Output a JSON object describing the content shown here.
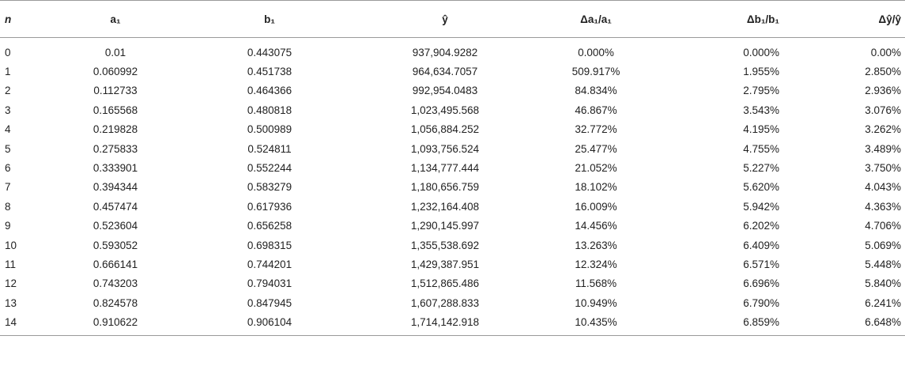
{
  "table": {
    "headers": [
      "n",
      "a₁",
      "b₁",
      "ŷ",
      "Δa₁/a₁",
      "Δb₁/b₁",
      "Δŷ/ŷ"
    ],
    "rows": [
      [
        "0",
        "0.01",
        "0.443075",
        "937,904.9282",
        "0.000%",
        "0.000%",
        "0.00%"
      ],
      [
        "1",
        "0.060992",
        "0.451738",
        "964,634.7057",
        "509.917%",
        "1.955%",
        "2.850%"
      ],
      [
        "2",
        "0.112733",
        "0.464366",
        "992,954.0483",
        "84.834%",
        "2.795%",
        "2.936%"
      ],
      [
        "3",
        "0.165568",
        "0.480818",
        "1,023,495.568",
        "46.867%",
        "3.543%",
        "3.076%"
      ],
      [
        "4",
        "0.219828",
        "0.500989",
        "1,056,884.252",
        "32.772%",
        "4.195%",
        "3.262%"
      ],
      [
        "5",
        "0.275833",
        "0.524811",
        "1,093,756.524",
        "25.477%",
        "4.755%",
        "3.489%"
      ],
      [
        "6",
        "0.333901",
        "0.552244",
        "1,134,777.444",
        "21.052%",
        "5.227%",
        "3.750%"
      ],
      [
        "7",
        "0.394344",
        "0.583279",
        "1,180,656.759",
        "18.102%",
        "5.620%",
        "4.043%"
      ],
      [
        "8",
        "0.457474",
        "0.617936",
        "1,232,164.408",
        "16.009%",
        "5.942%",
        "4.363%"
      ],
      [
        "9",
        "0.523604",
        "0.656258",
        "1,290,145.997",
        "14.456%",
        "6.202%",
        "4.706%"
      ],
      [
        "10",
        "0.593052",
        "0.698315",
        "1,355,538.692",
        "13.263%",
        "6.409%",
        "5.069%"
      ],
      [
        "11",
        "0.666141",
        "0.744201",
        "1,429,387.951",
        "12.324%",
        "6.571%",
        "5.448%"
      ],
      [
        "12",
        "0.743203",
        "0.794031",
        "1,512,865.486",
        "11.568%",
        "6.696%",
        "5.840%"
      ],
      [
        "13",
        "0.824578",
        "0.847945",
        "1,607,288.833",
        "10.949%",
        "6.790%",
        "6.241%"
      ],
      [
        "14",
        "0.910622",
        "0.906104",
        "1,714,142.918",
        "10.435%",
        "6.859%",
        "6.648%"
      ]
    ]
  }
}
